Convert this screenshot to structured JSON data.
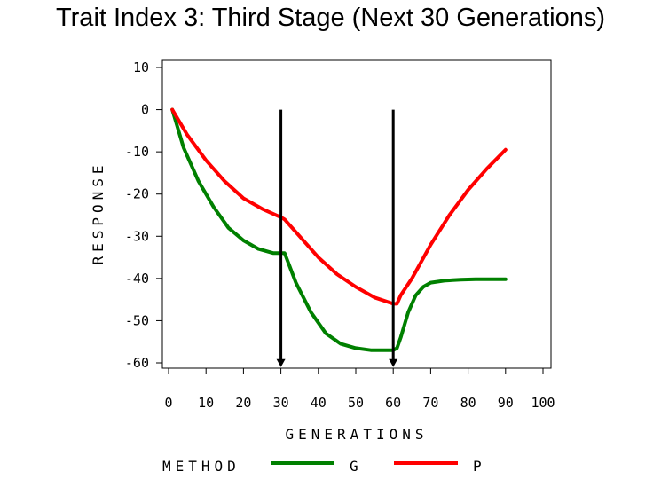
{
  "chart_data": {
    "type": "line",
    "title": "Trait Index 3: Third Stage (Next 30 Generations)",
    "xlabel": "GENERATIONS",
    "ylabel": "RESPONSE",
    "xlim": [
      0,
      100
    ],
    "ylim": [
      -60,
      10
    ],
    "xticks": [
      0,
      10,
      20,
      30,
      40,
      50,
      60,
      70,
      80,
      90,
      100
    ],
    "yticks": [
      10,
      0,
      -10,
      -20,
      -30,
      -40,
      -50,
      -60
    ],
    "grid": false,
    "legend": {
      "title": "METHOD",
      "position": "bottom"
    },
    "series": [
      {
        "name": "G",
        "color": "#008000",
        "x": [
          1,
          4,
          8,
          12,
          16,
          20,
          24,
          28,
          30,
          31,
          34,
          38,
          42,
          46,
          50,
          54,
          58,
          60,
          61,
          62,
          64,
          66,
          68,
          70,
          74,
          78,
          82,
          86,
          90
        ],
        "y": [
          0,
          -9,
          -17,
          -23,
          -28,
          -31,
          -33,
          -34,
          -34,
          -34,
          -41,
          -48,
          -53,
          -55.5,
          -56.5,
          -57,
          -57,
          -57,
          -56.5,
          -54,
          -48,
          -44,
          -42,
          -41,
          -40.5,
          -40.3,
          -40.2,
          -40.2,
          -40.2
        ]
      },
      {
        "name": "P",
        "color": "#ff0000",
        "x": [
          1,
          5,
          10,
          15,
          20,
          25,
          30,
          31,
          35,
          40,
          45,
          50,
          55,
          60,
          61,
          62,
          65,
          70,
          75,
          80,
          85,
          90
        ],
        "y": [
          0,
          -6,
          -12,
          -17,
          -21,
          -23.5,
          -25.5,
          -26,
          -30,
          -35,
          -39,
          -42,
          -44.5,
          -46,
          -46,
          -44,
          -40,
          -32,
          -25,
          -19,
          -14,
          -9.5
        ]
      }
    ],
    "annotations": [
      {
        "type": "arrow",
        "x": 30,
        "y_from": 0,
        "y_to": -61
      },
      {
        "type": "arrow",
        "x": 60,
        "y_from": 0,
        "y_to": -61
      }
    ]
  }
}
